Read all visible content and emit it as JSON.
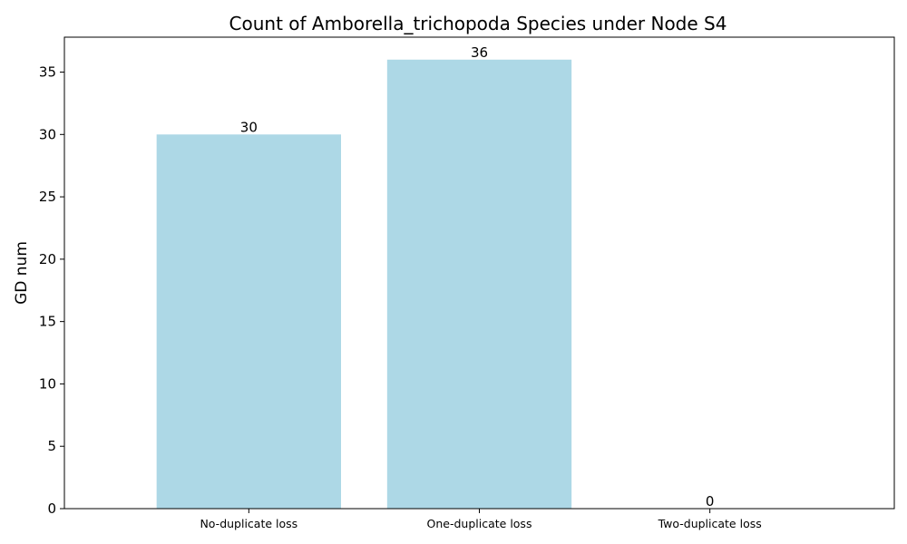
{
  "chart_data": {
    "type": "bar",
    "title": "Count of Amborella_trichopoda Species under Node S4",
    "xlabel": "",
    "ylabel": "GD num",
    "categories": [
      "No-duplicate loss",
      "One-duplicate loss",
      "Two-duplicate loss"
    ],
    "values": [
      30,
      36,
      0
    ],
    "data_labels": [
      "30",
      "36",
      "0"
    ],
    "ylim": [
      0,
      37.8
    ],
    "yticks": [
      0,
      5,
      10,
      15,
      20,
      25,
      30,
      35
    ],
    "ytick_labels": [
      "0",
      "5",
      "10",
      "15",
      "20",
      "25",
      "30",
      "35"
    ],
    "grid": false,
    "legend": "none",
    "bar_color": "#add8e6"
  }
}
